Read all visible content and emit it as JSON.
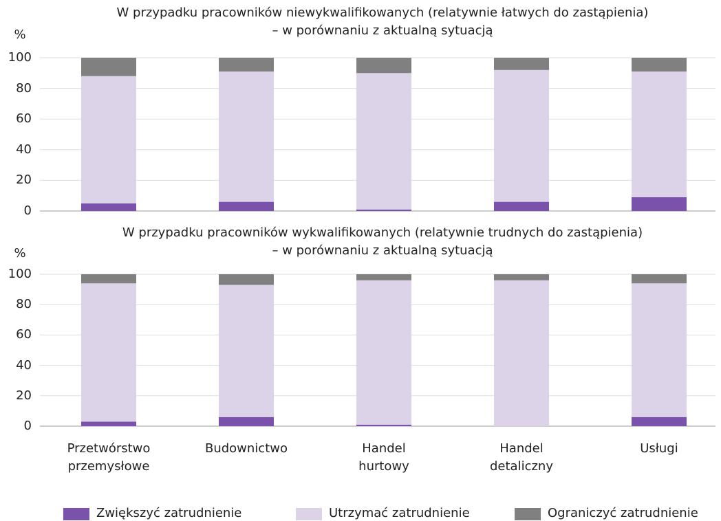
{
  "chart_data": [
    {
      "type": "stacked_bar",
      "title": "W przypadku pracowników niewykwalifikowanych (relatywnie łatwych do zastąpienia)\n– w porównaniu z aktualną sytuacją",
      "ylabel": "%",
      "categories": [
        null,
        null,
        null,
        null,
        null
      ],
      "series": [
        {
          "color": "#7b52ab",
          "values": [
            5,
            6,
            1,
            6,
            9
          ]
        },
        {
          "color": "#dcd3e9",
          "values": [
            83,
            85,
            89,
            86,
            82
          ]
        },
        {
          "color": "#808080",
          "values": [
            12,
            9,
            10,
            8,
            9
          ]
        }
      ],
      "ylim": [
        0,
        100
      ],
      "yticks": [
        0,
        20,
        40,
        60,
        80,
        100
      ],
      "grid": true
    },
    {
      "type": "stacked_bar",
      "title": "W przypadku pracowników wykwalifikowanych (relatywnie trudnych do zastąpienia)\n– w porównaniu z aktualną sytuacją",
      "ylabel": "%",
      "categories": [
        "Przetwórstwo\nprzemysłowe",
        "Budownictwo",
        "Handel\nhurtowy",
        "Handel\ndetaliczny",
        "Usługi"
      ],
      "series": [
        {
          "name": "Zwiększyć zatrudnienie",
          "color": "#7b52ab",
          "values": [
            3,
            6,
            1,
            0,
            6
          ]
        },
        {
          "name": "Utrzymać zatrudnienie",
          "color": "#dcd3e9",
          "values": [
            91,
            87,
            95,
            96,
            88
          ]
        },
        {
          "name": "Ograniczyć zatrudnienie",
          "color": "#808080",
          "values": [
            6,
            7,
            4,
            4,
            6
          ]
        }
      ],
      "ylim": [
        0,
        100
      ],
      "yticks": [
        0,
        20,
        40,
        60,
        80,
        100
      ],
      "grid": true,
      "legend": "bottom"
    }
  ]
}
